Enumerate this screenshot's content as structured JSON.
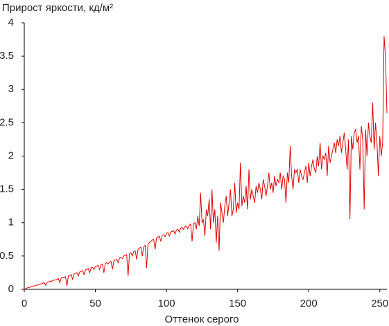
{
  "chart_data": {
    "type": "line",
    "title": "Прирост яркости, кд/м²",
    "x_label": "Оттенок серого",
    "x": [
      0,
      1,
      2,
      3,
      4,
      5,
      6,
      7,
      8,
      9,
      10,
      11,
      12,
      13,
      14,
      15,
      16,
      17,
      18,
      19,
      20,
      21,
      22,
      23,
      24,
      25,
      26,
      27,
      28,
      29,
      30,
      31,
      32,
      33,
      34,
      35,
      36,
      37,
      38,
      39,
      40,
      41,
      42,
      43,
      44,
      45,
      46,
      47,
      48,
      49,
      50,
      51,
      52,
      53,
      54,
      55,
      56,
      57,
      58,
      59,
      60,
      61,
      62,
      63,
      64,
      65,
      66,
      67,
      68,
      69,
      70,
      71,
      72,
      73,
      74,
      75,
      76,
      77,
      78,
      79,
      80,
      81,
      82,
      83,
      84,
      85,
      86,
      87,
      88,
      89,
      90,
      91,
      92,
      93,
      94,
      95,
      96,
      97,
      98,
      99,
      100,
      101,
      102,
      103,
      104,
      105,
      106,
      107,
      108,
      109,
      110,
      111,
      112,
      113,
      114,
      115,
      116,
      117,
      118,
      119,
      120,
      121,
      122,
      123,
      124,
      125,
      126,
      127,
      128,
      129,
      130,
      131,
      132,
      133,
      134,
      135,
      136,
      137,
      138,
      139,
      140,
      141,
      142,
      143,
      144,
      145,
      146,
      147,
      148,
      149,
      150,
      151,
      152,
      153,
      154,
      155,
      156,
      157,
      158,
      159,
      160,
      161,
      162,
      163,
      164,
      165,
      166,
      167,
      168,
      169,
      170,
      171,
      172,
      173,
      174,
      175,
      176,
      177,
      178,
      179,
      180,
      181,
      182,
      183,
      184,
      185,
      186,
      187,
      188,
      189,
      190,
      191,
      192,
      193,
      194,
      195,
      196,
      197,
      198,
      199,
      200,
      201,
      202,
      203,
      204,
      205,
      206,
      207,
      208,
      209,
      210,
      211,
      212,
      213,
      214,
      215,
      216,
      217,
      218,
      219,
      220,
      221,
      222,
      223,
      224,
      225,
      226,
      227,
      228,
      229,
      230,
      231,
      232,
      233,
      234,
      235,
      236,
      237,
      238,
      239,
      240,
      241,
      242,
      243,
      244,
      245,
      246,
      247,
      248,
      249,
      250,
      251,
      252,
      253,
      254,
      255
    ],
    "series": [
      {
        "color": "#e00000",
        "values": [
          0,
          0.01,
          0.02,
          0.03,
          0.03,
          0.04,
          0.05,
          0.05,
          0.06,
          0.06,
          0.07,
          0.08,
          0.08,
          0.09,
          0.1,
          0.06,
          0.1,
          0.11,
          0.12,
          0.12,
          0.13,
          0.14,
          0.14,
          0.15,
          0.16,
          0.1,
          0.17,
          0.18,
          0.18,
          0.19,
          0.05,
          0.2,
          0.21,
          0.22,
          0.15,
          0.23,
          0.24,
          0.25,
          0.2,
          0.26,
          0.27,
          0.28,
          0.22,
          0.29,
          0.3,
          0.31,
          0.25,
          0.32,
          0.33,
          0.3,
          0.34,
          0.35,
          0.36,
          0.3,
          0.37,
          0.38,
          0.25,
          0.39,
          0.4,
          0.38,
          0.41,
          0.42,
          0.3,
          0.43,
          0.44,
          0.45,
          0.4,
          0.47,
          0.48,
          0.46,
          0.5,
          0.51,
          0.52,
          0.2,
          0.54,
          0.55,
          0.5,
          0.57,
          0.58,
          0.45,
          0.6,
          0.62,
          0.63,
          0.5,
          0.64,
          0.66,
          0.32,
          0.68,
          0.7,
          0.72,
          0.74,
          0.75,
          0.6,
          0.77,
          0.78,
          0.8,
          0.72,
          0.81,
          0.82,
          0.79,
          0.84,
          0.85,
          0.8,
          0.86,
          0.87,
          0.88,
          0.83,
          0.89,
          0.9,
          0.86,
          0.92,
          0.93,
          0.9,
          0.94,
          0.95,
          0.91,
          0.96,
          0.98,
          0.72,
          0.99,
          1.0,
          0.9,
          1.1,
          0.95,
          1.45,
          1.0,
          1.05,
          0.8,
          1.2,
          1.1,
          1.35,
          0.9,
          1.5,
          1.0,
          1.2,
          0.7,
          1.1,
          0.58,
          1.3,
          1.15,
          1.0,
          1.25,
          1.4,
          1.1,
          1.3,
          1.5,
          1.1,
          1.2,
          1.6,
          1.15,
          1.3,
          1.2,
          1.9,
          1.25,
          1.4,
          1.3,
          1.55,
          1.2,
          1.8,
          1.35,
          1.5,
          1.4,
          1.3,
          1.55,
          1.45,
          1.6,
          1.5,
          1.35,
          1.65,
          1.55,
          1.4,
          1.55,
          1.75,
          1.5,
          1.6,
          1.45,
          1.7,
          1.55,
          1.65,
          1.6,
          1.75,
          1.5,
          1.7,
          1.65,
          1.3,
          1.75,
          1.6,
          2.15,
          1.7,
          1.5,
          1.8,
          1.75,
          1.8,
          1.6,
          1.8,
          1.7,
          1.65,
          1.75,
          1.85,
          1.6,
          1.9,
          1.7,
          1.85,
          1.95,
          1.8,
          1.75,
          2.0,
          1.85,
          2.2,
          1.8,
          2.0,
          1.95,
          2.05,
          1.7,
          2.15,
          1.9,
          2.0,
          2.1,
          2.2,
          2.05,
          2.25,
          2.15,
          2.3,
          2.05,
          2.2,
          2.35,
          2.1,
          1.8,
          2.25,
          1.05,
          2.3,
          2.1,
          2.35,
          2.4,
          2.2,
          2.3,
          1.8,
          2.45,
          2.25,
          1.2,
          2.4,
          2.0,
          2.5,
          2.3,
          2.2,
          2.8,
          2.1,
          2.5,
          2.2,
          1.7,
          2.3,
          2.0,
          2.2,
          3.8,
          3.5,
          2.65
        ]
      }
    ],
    "xlim": [
      0,
      255
    ],
    "xticks": [
      0,
      50,
      100,
      150,
      200,
      250
    ],
    "ylim": [
      0,
      4
    ],
    "yticks": [
      0,
      0.5,
      1,
      1.5,
      2,
      2.5,
      3,
      3.5,
      4
    ]
  }
}
